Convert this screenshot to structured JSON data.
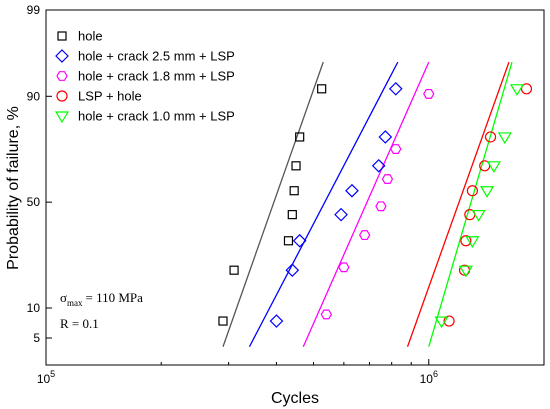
{
  "chart_data": {
    "type": "scatter",
    "title": "",
    "xlabel": "Cycles",
    "ylabel": "Probability of failure, %",
    "x_scale": "log",
    "y_scale": "normal-probability",
    "xlim": [
      100000,
      2000000
    ],
    "ylim": [
      3,
      99
    ],
    "x_ticks": [
      {
        "value": 100000,
        "label_base": "10",
        "label_exp": "5"
      },
      {
        "value": 1000000,
        "label_base": "10",
        "label_exp": "6"
      }
    ],
    "y_ticks": [
      {
        "value": 5,
        "label": "5"
      },
      {
        "value": 10,
        "label": "10"
      },
      {
        "value": 50,
        "label": "50"
      },
      {
        "value": 90,
        "label": "90"
      },
      {
        "value": 99,
        "label": "99"
      }
    ],
    "grid": false,
    "legend_position": "top-left",
    "series": [
      {
        "name": "hole",
        "marker": "square",
        "color": "#000000",
        "line_color": "#555555",
        "points": [
          {
            "x": 290000,
            "y": 7.5
          },
          {
            "x": 310000,
            "y": 20.5
          },
          {
            "x": 430000,
            "y": 32
          },
          {
            "x": 440000,
            "y": 44
          },
          {
            "x": 445000,
            "y": 55.5
          },
          {
            "x": 450000,
            "y": 67
          },
          {
            "x": 460000,
            "y": 78.5
          },
          {
            "x": 525000,
            "y": 91.5
          }
        ],
        "fit_line": [
          {
            "x": 290000,
            "y": 4
          },
          {
            "x": 530000,
            "y": 95.5
          }
        ]
      },
      {
        "name": "hole + crack 2.5 mm + LSP",
        "marker": "diamond",
        "color": "#0000ff",
        "line_color": "#0000ff",
        "points": [
          {
            "x": 400000,
            "y": 7.5
          },
          {
            "x": 440000,
            "y": 20.5
          },
          {
            "x": 460000,
            "y": 32
          },
          {
            "x": 590000,
            "y": 44
          },
          {
            "x": 630000,
            "y": 55.5
          },
          {
            "x": 740000,
            "y": 67
          },
          {
            "x": 770000,
            "y": 78.5
          },
          {
            "x": 820000,
            "y": 91.5
          }
        ],
        "fit_line": [
          {
            "x": 340000,
            "y": 4
          },
          {
            "x": 830000,
            "y": 95.5
          }
        ]
      },
      {
        "name": "hole + crack 1.8 mm + LSP",
        "marker": "hexagon",
        "color": "#ff00ff",
        "line_color": "#ff00ff",
        "points": [
          {
            "x": 540000,
            "y": 8.7
          },
          {
            "x": 600000,
            "y": 21.5
          },
          {
            "x": 680000,
            "y": 34.5
          },
          {
            "x": 750000,
            "y": 48
          },
          {
            "x": 780000,
            "y": 61
          },
          {
            "x": 820000,
            "y": 74
          },
          {
            "x": 1000000,
            "y": 90.5
          }
        ],
        "fit_line": [
          {
            "x": 470000,
            "y": 4
          },
          {
            "x": 1000000,
            "y": 95.5
          }
        ]
      },
      {
        "name": "LSP + hole",
        "marker": "circle",
        "color": "#ff0000",
        "line_color": "#ff0000",
        "points": [
          {
            "x": 1130000,
            "y": 7.5
          },
          {
            "x": 1240000,
            "y": 20.5
          },
          {
            "x": 1250000,
            "y": 32
          },
          {
            "x": 1280000,
            "y": 44
          },
          {
            "x": 1300000,
            "y": 55.5
          },
          {
            "x": 1400000,
            "y": 67
          },
          {
            "x": 1450000,
            "y": 78.5
          },
          {
            "x": 1800000,
            "y": 91.5
          }
        ],
        "fit_line": [
          {
            "x": 880000,
            "y": 4
          },
          {
            "x": 1620000,
            "y": 95.5
          }
        ]
      },
      {
        "name": "hole + crack 1.0 mm + LSP",
        "marker": "triangle-down",
        "color": "#00ff00",
        "line_color": "#00ff00",
        "points": [
          {
            "x": 1080000,
            "y": 7.5
          },
          {
            "x": 1250000,
            "y": 20.5
          },
          {
            "x": 1300000,
            "y": 32
          },
          {
            "x": 1350000,
            "y": 44
          },
          {
            "x": 1420000,
            "y": 55.5
          },
          {
            "x": 1480000,
            "y": 67
          },
          {
            "x": 1580000,
            "y": 78.5
          },
          {
            "x": 1700000,
            "y": 91.5
          }
        ],
        "fit_line": [
          {
            "x": 1000000,
            "y": 4
          },
          {
            "x": 1650000,
            "y": 95.5
          }
        ]
      }
    ],
    "annotations": {
      "sigma_symbol": "σ",
      "sigma_sub": "max",
      "sigma_value": "= 110 MPa",
      "ratio": "R = 0.1"
    }
  }
}
